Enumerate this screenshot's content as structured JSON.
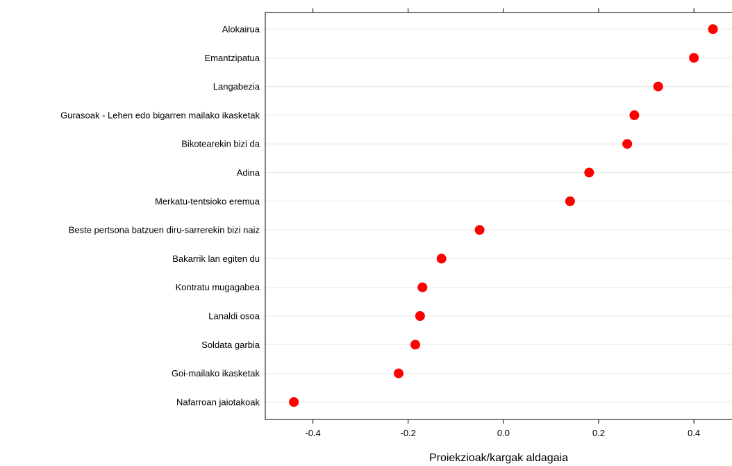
{
  "chart_data": {
    "type": "scatter",
    "title": "",
    "xlabel": "Proiekzioak/kargak aldagaia",
    "ylabel": "",
    "xlim": [
      -0.5,
      0.48
    ],
    "xticks": [
      "-0.4",
      "-0.2",
      "0.0",
      "0.2",
      "0.4"
    ],
    "xtick_values": [
      -0.4,
      -0.2,
      0.0,
      0.2,
      0.4
    ],
    "grid": true,
    "marker_color": "#ff0000",
    "categories": [
      "Alokairua",
      "Emantzipatua",
      "Langabezia",
      "Gurasoak - Lehen edo bigarren mailako ikasketak",
      "Bikotearekin bizi da",
      "Adina",
      "Merkatu-tentsioko eremua",
      "Beste pertsona batzuen diru-sarrerekin bizi naiz",
      "Bakarrik lan egiten du",
      "Kontratu mugagabea",
      "Lanaldi osoa",
      "Soldata garbia",
      "Goi-mailako ikasketak",
      "Nafarroan jaiotakoak"
    ],
    "values": [
      0.44,
      0.4,
      0.325,
      0.275,
      0.26,
      0.18,
      0.14,
      -0.05,
      -0.13,
      -0.17,
      -0.175,
      -0.185,
      -0.22,
      -0.44
    ]
  }
}
